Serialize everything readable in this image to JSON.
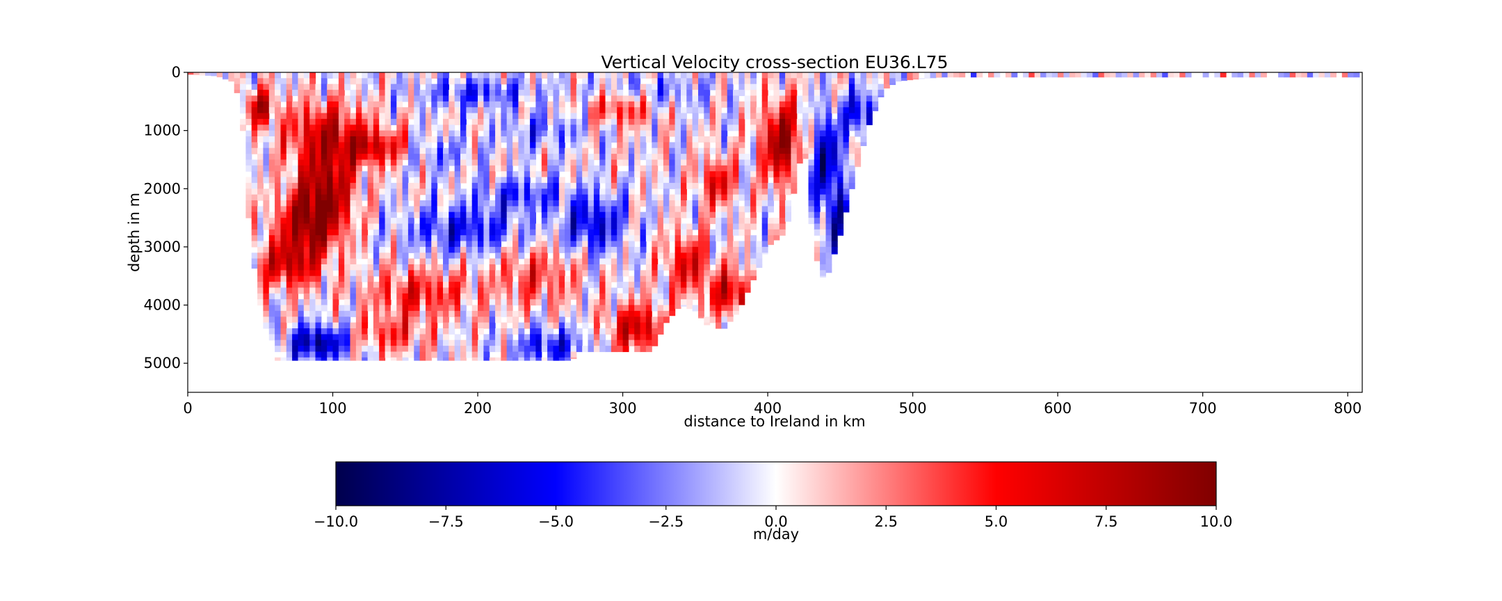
{
  "chart_data": {
    "type": "heatmap",
    "title": "Vertical Velocity cross-section EU36.L75",
    "xlabel": "distance to Ireland in km",
    "ylabel": "depth in m",
    "xlim": [
      0,
      810
    ],
    "ylim": [
      5500,
      0
    ],
    "x_ticks": [
      0,
      100,
      200,
      300,
      400,
      500,
      600,
      700,
      800
    ],
    "y_ticks": [
      0,
      1000,
      2000,
      3000,
      4000,
      5000
    ],
    "y_inverted": true,
    "grid": false,
    "colormap": "seismic",
    "colors": {
      "min": "#00004c",
      "low": "#0000ff",
      "center": "#ffffff",
      "high": "#ff0000",
      "max": "#800000"
    },
    "colorbar": {
      "label": "m/day",
      "range": [
        -10,
        10
      ],
      "ticks": [
        -10,
        -7.5,
        -5,
        -2.5,
        0,
        2.5,
        5,
        7.5,
        10
      ],
      "tick_labels": [
        "−10.0",
        "−7.5",
        "−5.0",
        "−2.5",
        "0.0",
        "2.5",
        "5.0",
        "7.5",
        "10.0"
      ],
      "placement": "bottom"
    },
    "bathymetry": {
      "distance_km": [
        0,
        20,
        30,
        35,
        38,
        42,
        48,
        55,
        60,
        80,
        100,
        140,
        150,
        190,
        200,
        240,
        250,
        265,
        270,
        290,
        300,
        320,
        330,
        340,
        350,
        360,
        370,
        380,
        395,
        400,
        410,
        415,
        420,
        425,
        430,
        435,
        440,
        445,
        450,
        455,
        460,
        470,
        480,
        490,
        500,
        510,
        520,
        810
      ],
      "floor_depth_m": [
        30,
        60,
        150,
        400,
        1000,
        2500,
        3800,
        4500,
        4950,
        4950,
        4950,
        4950,
        4950,
        4950,
        4950,
        4950,
        4950,
        4950,
        4800,
        4800,
        4800,
        4800,
        4300,
        4000,
        4100,
        4400,
        4400,
        4100,
        3300,
        3000,
        2800,
        2500,
        1800,
        1200,
        2600,
        3400,
        3600,
        3200,
        2800,
        2300,
        1800,
        900,
        300,
        150,
        120,
        100,
        80,
        80
      ]
    },
    "blobs": [
      {
        "x": 85,
        "y": 2600,
        "w": 22,
        "h": 500,
        "v": 9
      },
      {
        "x": 95,
        "y": 1900,
        "w": 20,
        "h": 600,
        "v": 8
      },
      {
        "x": 95,
        "y": 1000,
        "w": 30,
        "h": 500,
        "v": 6
      },
      {
        "x": 50,
        "y": 600,
        "w": 10,
        "h": 300,
        "v": 7
      },
      {
        "x": 70,
        "y": 3300,
        "w": 22,
        "h": 400,
        "v": 7
      },
      {
        "x": 130,
        "y": 1300,
        "w": 25,
        "h": 300,
        "v": 6
      },
      {
        "x": 200,
        "y": 350,
        "w": 40,
        "h": 250,
        "v": -4
      },
      {
        "x": 320,
        "y": 350,
        "w": 40,
        "h": 300,
        "v": -3
      },
      {
        "x": 300,
        "y": 600,
        "w": 25,
        "h": 300,
        "v": 5
      },
      {
        "x": 190,
        "y": 2700,
        "w": 40,
        "h": 400,
        "v": -5
      },
      {
        "x": 280,
        "y": 2600,
        "w": 22,
        "h": 500,
        "v": -6
      },
      {
        "x": 230,
        "y": 2100,
        "w": 30,
        "h": 300,
        "v": -4
      },
      {
        "x": 170,
        "y": 1400,
        "w": 25,
        "h": 300,
        "v": -3
      },
      {
        "x": 160,
        "y": 3800,
        "w": 35,
        "h": 400,
        "v": 5
      },
      {
        "x": 240,
        "y": 3500,
        "w": 30,
        "h": 500,
        "v": 4
      },
      {
        "x": 90,
        "y": 4650,
        "w": 20,
        "h": 300,
        "v": -8
      },
      {
        "x": 140,
        "y": 4500,
        "w": 25,
        "h": 300,
        "v": 4
      },
      {
        "x": 250,
        "y": 4700,
        "w": 25,
        "h": 300,
        "v": -5
      },
      {
        "x": 310,
        "y": 4400,
        "w": 20,
        "h": 400,
        "v": 7
      },
      {
        "x": 365,
        "y": 1900,
        "w": 12,
        "h": 400,
        "v": 6
      },
      {
        "x": 345,
        "y": 3300,
        "w": 15,
        "h": 500,
        "v": 6
      },
      {
        "x": 375,
        "y": 3800,
        "w": 15,
        "h": 400,
        "v": 7
      },
      {
        "x": 410,
        "y": 1200,
        "w": 14,
        "h": 700,
        "v": 9
      },
      {
        "x": 440,
        "y": 1500,
        "w": 12,
        "h": 800,
        "v": -7
      },
      {
        "x": 450,
        "y": 2600,
        "w": 10,
        "h": 600,
        "v": -6
      },
      {
        "x": 465,
        "y": 700,
        "w": 12,
        "h": 400,
        "v": -6
      },
      {
        "x": 245,
        "y": 1000,
        "w": 30,
        "h": 300,
        "v": -3
      }
    ]
  }
}
